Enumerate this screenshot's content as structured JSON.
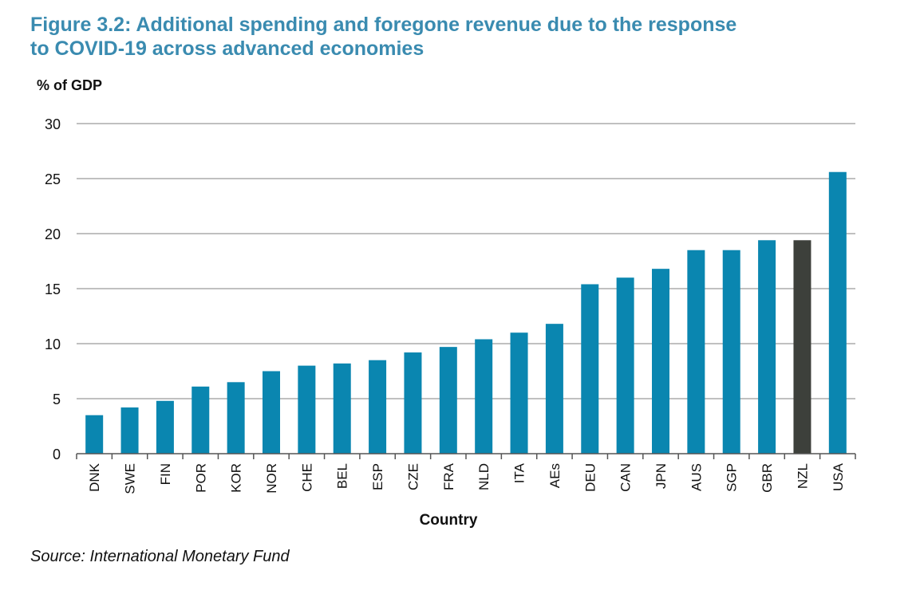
{
  "title_lines": [
    "Figure 3.2: Additional spending and foregone revenue due to the response",
    "to COVID-19 across advanced economies"
  ],
  "source": "Source: International Monetary Fund",
  "colors": {
    "title": "#3a8bb0",
    "bar": "#0a86b0",
    "highlight_bar": "#3d403b",
    "grid": "#9a9a9a"
  },
  "chart_data": {
    "type": "bar",
    "ylabel": "% of GDP",
    "xlabel": "Country",
    "ylim": [
      0,
      30
    ],
    "yticks": [
      0,
      5,
      10,
      15,
      20,
      25,
      30
    ],
    "grid": true,
    "categories": [
      "DNK",
      "SWE",
      "FIN",
      "POR",
      "KOR",
      "NOR",
      "CHE",
      "BEL",
      "ESP",
      "CZE",
      "FRA",
      "NLD",
      "ITA",
      "AEs",
      "DEU",
      "CAN",
      "JPN",
      "AUS",
      "SGP",
      "GBR",
      "NZL",
      "USA"
    ],
    "values": [
      3.5,
      4.2,
      4.8,
      6.1,
      6.5,
      7.5,
      8.0,
      8.2,
      8.5,
      9.2,
      9.7,
      10.4,
      11.0,
      11.8,
      15.4,
      16.0,
      16.8,
      18.5,
      18.5,
      19.4,
      19.4,
      25.6
    ],
    "highlight": "NZL"
  }
}
